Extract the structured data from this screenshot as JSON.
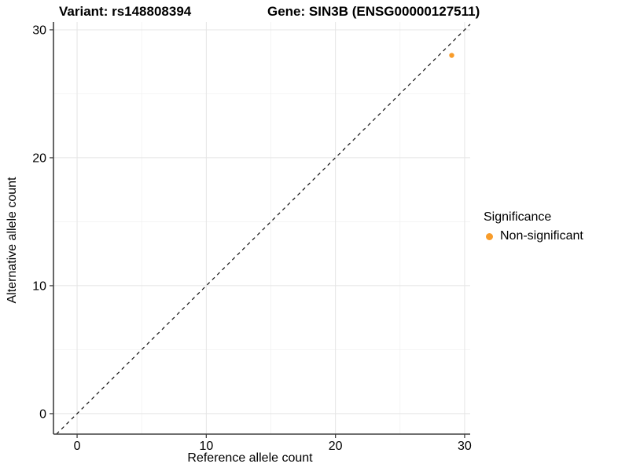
{
  "titles": {
    "variant": "Variant: rs148808394",
    "gene": "Gene: SIN3B (ENSG00000127511)"
  },
  "axes": {
    "x_label": "Reference allele count",
    "y_label": "Alternative allele count"
  },
  "legend": {
    "title": "Significance",
    "items": [
      {
        "label": "Non-significant",
        "color": "#F89C2A"
      }
    ]
  },
  "colors": {
    "point_orange": "#F89C2A",
    "grid_major": "#E4E4E4",
    "grid_minor": "#EFEFEF",
    "axis_line": "#404040",
    "tick_text": "#000000",
    "identity_line": "#111111",
    "background": "#FFFFFF"
  },
  "chart_data": {
    "type": "scatter",
    "title": "Variant: rs148808394   Gene: SIN3B (ENSG00000127511)",
    "xlabel": "Reference allele count",
    "ylabel": "Alternative allele count",
    "xlim": [
      -1.83,
      30.43
    ],
    "ylim": [
      -1.6,
      30.61
    ],
    "x_ticks": [
      0,
      10,
      20,
      30
    ],
    "y_ticks": [
      0,
      10,
      20,
      30
    ],
    "x_minor_ticks": [
      5,
      15,
      25
    ],
    "y_minor_ticks": [
      5,
      15,
      25
    ],
    "grid": true,
    "legend_position": "right",
    "reference_line": {
      "kind": "identity",
      "slope": 1,
      "intercept": 0,
      "style": "dashed"
    },
    "series": [
      {
        "name": "Non-significant",
        "color": "#F89C2A",
        "point_radius": 3.2,
        "points": [
          {
            "x": 29,
            "y": 28
          }
        ]
      }
    ]
  }
}
